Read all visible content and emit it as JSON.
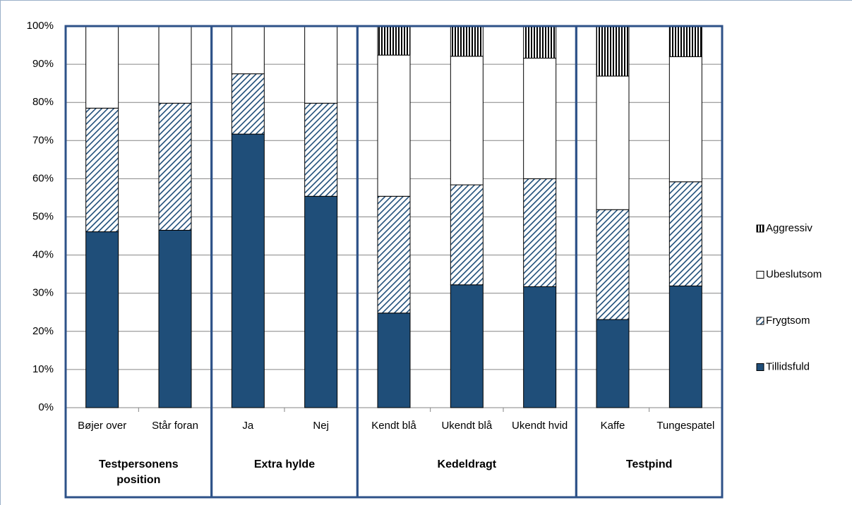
{
  "chart_data": {
    "type": "stacked_bar_100",
    "groups": [
      {
        "label": "Testpersonens position",
        "categories": [
          "Bøjer over",
          "Står foran"
        ]
      },
      {
        "label": "Extra hylde",
        "categories": [
          "Ja",
          "Nej"
        ]
      },
      {
        "label": "Kedeldragt",
        "categories": [
          "Kendt blå",
          "Ukendt blå",
          "Ukendt hvid"
        ]
      },
      {
        "label": "Testpind",
        "categories": [
          "Kaffe",
          "Tungespatel"
        ]
      }
    ],
    "series": [
      {
        "name": "Tillidsfuld",
        "color": "#1f4e79",
        "fill": "solid",
        "values": [
          46.1,
          46.5,
          71.7,
          55.4,
          24.8,
          32.2,
          31.7,
          23.1,
          31.9
        ]
      },
      {
        "name": "Frygtsom",
        "color": "#1f4e79",
        "fill": "diagonal",
        "values": [
          32.4,
          33.3,
          15.8,
          24.4,
          30.6,
          26.2,
          28.3,
          28.8,
          27.3
        ]
      },
      {
        "name": "Ubeslutsom",
        "color": "#ffffff",
        "fill": "solid",
        "values": [
          21.5,
          20.2,
          12.5,
          20.2,
          37.0,
          33.7,
          31.6,
          35.0,
          32.8
        ]
      },
      {
        "name": "Aggressiv",
        "color": "#000000",
        "fill": "vertical",
        "values": [
          0,
          0,
          0,
          0,
          7.6,
          7.9,
          8.4,
          13.1,
          8.0
        ]
      }
    ],
    "ylim": [
      0,
      100
    ],
    "yticks": [
      {
        "value": 0,
        "label": "0%"
      },
      {
        "value": 10,
        "label": "10%"
      },
      {
        "value": 20,
        "label": "20%"
      },
      {
        "value": 30,
        "label": "30%"
      },
      {
        "value": 40,
        "label": "40%"
      },
      {
        "value": 50,
        "label": "50%"
      },
      {
        "value": 60,
        "label": "60%"
      },
      {
        "value": 70,
        "label": "70%"
      },
      {
        "value": 80,
        "label": "80%"
      },
      {
        "value": 90,
        "label": "90%"
      },
      {
        "value": 100,
        "label": "100%"
      }
    ],
    "grid": true,
    "legend": "right"
  }
}
